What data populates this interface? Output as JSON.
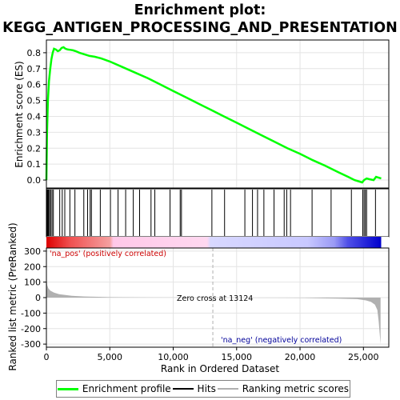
{
  "title_lines": [
    "Enrichment plot:",
    "KEGG_ANTIGEN_PROCESSING_AND_PRESENTATION"
  ],
  "colors": {
    "enrichment": "#00ff00",
    "hits": "#000000",
    "metric": "#b0b0b0",
    "pos_label": "#cc0000",
    "neg_label": "#000099",
    "zero_line": "#b0b0b0"
  },
  "chart_data": [
    {
      "type": "line",
      "name": "enrichment-profile",
      "ylabel": "Enrichment score (ES)",
      "ylim": [
        -0.05,
        0.88
      ],
      "yticks": [
        0.0,
        0.1,
        0.2,
        0.3,
        0.4,
        0.5,
        0.6,
        0.7,
        0.8
      ],
      "ytick_labels": [
        "0.0",
        "0.1",
        "0.2",
        "0.3",
        "0.4",
        "0.5",
        "0.6",
        "0.7",
        "0.8"
      ],
      "xlim": [
        0,
        27000
      ],
      "grid": true,
      "x": [
        0,
        50,
        120,
        200,
        300,
        400,
        500,
        600,
        750,
        900,
        1050,
        1200,
        1350,
        1500,
        1700,
        1900,
        2100,
        2300,
        2600,
        3000,
        3400,
        3800,
        4300,
        5000,
        6000,
        7000,
        8000,
        9000,
        10000,
        11000,
        12000,
        13000,
        14000,
        15000,
        16000,
        17000,
        18000,
        19000,
        20000,
        21000,
        22000,
        23000,
        23800,
        24300,
        24700,
        24900,
        25050,
        25250,
        25500,
        25800,
        26000,
        26200,
        26400
      ],
      "values": [
        0.0,
        0.3,
        0.5,
        0.62,
        0.7,
        0.76,
        0.8,
        0.825,
        0.82,
        0.81,
        0.815,
        0.83,
        0.835,
        0.825,
        0.82,
        0.818,
        0.815,
        0.81,
        0.8,
        0.79,
        0.78,
        0.775,
        0.765,
        0.745,
        0.71,
        0.675,
        0.64,
        0.6,
        0.56,
        0.52,
        0.48,
        0.44,
        0.4,
        0.36,
        0.32,
        0.28,
        0.24,
        0.2,
        0.165,
        0.125,
        0.09,
        0.05,
        0.02,
        0.0,
        -0.01,
        -0.015,
        0.0,
        0.01,
        0.005,
        0.0,
        0.02,
        0.015,
        0.01
      ]
    },
    {
      "type": "scatter",
      "name": "hits",
      "x": [
        60,
        120,
        180,
        250,
        350,
        450,
        550,
        1050,
        1250,
        1450,
        1850,
        2250,
        2950,
        3250,
        3450,
        3550,
        4250,
        5050,
        5650,
        6250,
        6850,
        7350,
        8250,
        8550,
        9750,
        10550,
        10650,
        13050,
        14050,
        15650,
        16250,
        16650,
        17150,
        17950,
        18750,
        18950,
        19250,
        20950,
        22450,
        24050,
        24950,
        25050,
        25150,
        25250,
        25950
      ]
    },
    {
      "type": "area",
      "name": "ranking-metric",
      "ylabel": "Ranked list metric (PreRanked)",
      "xlabel": "Rank in Ordered Dataset",
      "ylim": [
        -320,
        320
      ],
      "yticks": [
        300,
        200,
        100,
        0,
        -100,
        -200,
        -300
      ],
      "ytick_labels": [
        "300",
        "200",
        "100",
        "0",
        "-100",
        "-200",
        "-300"
      ],
      "xticks": [
        0,
        5000,
        10000,
        15000,
        20000,
        25000
      ],
      "xtick_labels": [
        "0",
        "5,000",
        "10,000",
        "15,000",
        "20,000",
        "25,000"
      ],
      "x": [
        0,
        20,
        60,
        150,
        300,
        600,
        1000,
        2000,
        3000,
        5000,
        8000,
        11000,
        13124,
        16000,
        20000,
        23000,
        24500,
        25200,
        25600,
        25900,
        26100,
        26200,
        26300,
        26350
      ],
      "values": [
        280,
        120,
        80,
        60,
        45,
        32,
        22,
        12,
        7,
        3,
        1,
        0.3,
        0,
        -0.5,
        -2,
        -6,
        -10,
        -18,
        -28,
        -45,
        -80,
        -150,
        -250,
        -300
      ]
    }
  ],
  "annotations": {
    "pos_label": "'na_pos' (positively correlated)",
    "neg_label": "'na_neg' (negatively correlated)",
    "zero_cross": "Zero cross at 13124",
    "zero_cross_x": 13124
  },
  "legend": {
    "items": [
      {
        "label": "Enrichment profile",
        "icon": "green-line-icon"
      },
      {
        "label": "Hits",
        "icon": "black-line-icon"
      },
      {
        "label": "Ranking metric scores",
        "icon": "gray-line-icon"
      }
    ]
  }
}
